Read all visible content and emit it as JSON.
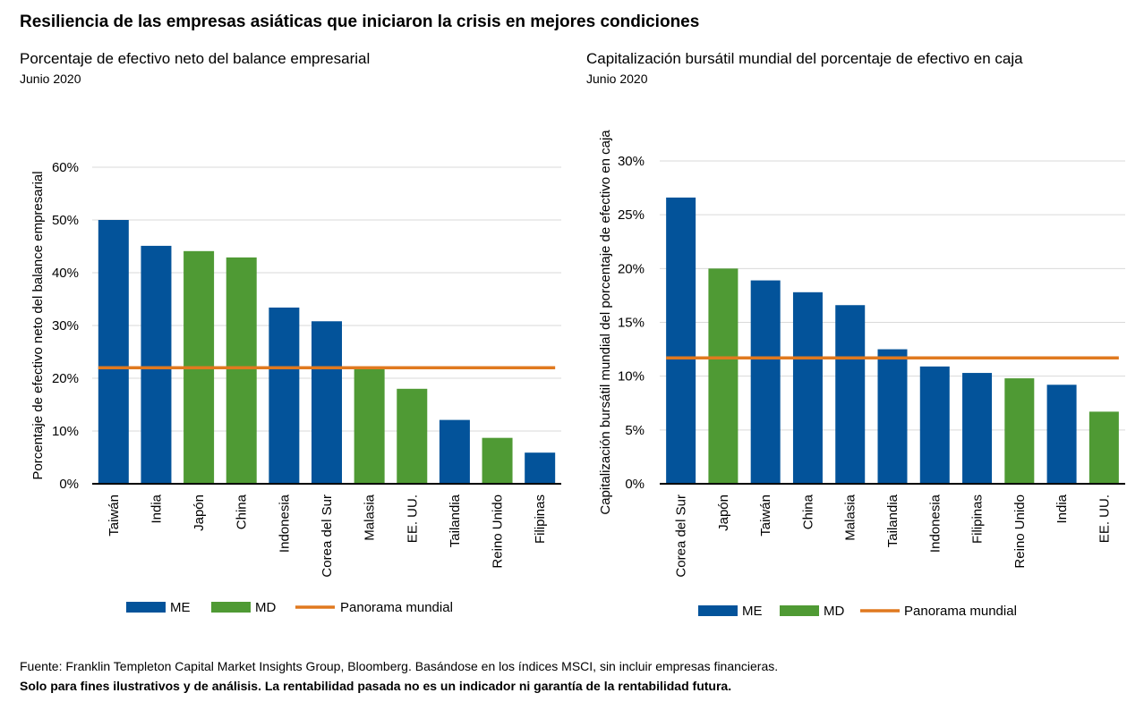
{
  "title": "Resiliencia de las empresas asiáticas que iniciaron la crisis en mejores condiciones",
  "colors": {
    "ME": "#03539a",
    "MD": "#4f9a34",
    "line": "#e0791f",
    "grid": "#d9d9d9",
    "axis": "#000000"
  },
  "footer": {
    "source": "Fuente: Franklin Templeton Capital Market Insights Group, Bloomberg. Basándose en los índices MSCI, sin incluir empresas financieras.",
    "disclaimer": "Solo para fines ilustrativos y de análisis. La rentabilidad pasada no es un indicador ni garantía de la rentabilidad futura."
  },
  "chart_data": [
    {
      "type": "bar",
      "title": "Porcentaje de efectivo neto del balance empresarial",
      "subtitle": "Junio 2020",
      "ylabel": "Porcentaje de efectivo neto del balance empresarial",
      "ylim": [
        0,
        60
      ],
      "yticks": [
        0,
        10,
        20,
        30,
        40,
        50,
        60
      ],
      "ytick_labels": [
        "0%",
        "10%",
        "20%",
        "30%",
        "40%",
        "50%",
        "60%"
      ],
      "categories": [
        "Taiwán",
        "India",
        "Japón",
        "China",
        "Indonesia",
        "Corea del Sur",
        "Malasia",
        "EE. UU.",
        "Tailandia",
        "Reino Unido",
        "Filipinas"
      ],
      "values": [
        50.0,
        45.1,
        44.1,
        42.9,
        33.4,
        30.8,
        22.0,
        18.0,
        12.1,
        8.7,
        5.9
      ],
      "groups": [
        "ME",
        "ME",
        "MD",
        "MD",
        "ME",
        "ME",
        "MD",
        "MD",
        "ME",
        "MD",
        "ME"
      ],
      "reference_line": {
        "name": "Panorama mundial",
        "value": 22.0
      },
      "legend": [
        {
          "key": "ME",
          "label": "ME"
        },
        {
          "key": "MD",
          "label": "MD"
        },
        {
          "key": "line",
          "label": "Panorama mundial"
        }
      ],
      "grid": true,
      "legend_position": "bottom"
    },
    {
      "type": "bar",
      "title": "Capitalización bursátil mundial del porcentaje de efectivo en caja",
      "subtitle": "Junio 2020",
      "ylabel": "Capitalización bursátil mundial del porcentaje de efectivo en caja",
      "ylim": [
        0,
        30
      ],
      "yticks": [
        0,
        5,
        10,
        15,
        20,
        25,
        30
      ],
      "ytick_labels": [
        "0%",
        "5%",
        "10%",
        "15%",
        "20%",
        "25%",
        "30%"
      ],
      "categories": [
        "Corea del Sur",
        "Japón",
        "Taiwán",
        "China",
        "Malasia",
        "Tailandia",
        "Indonesia",
        "Filipinas",
        "Reino Unido",
        "India",
        "EE. UU."
      ],
      "values": [
        26.6,
        20.0,
        18.9,
        17.8,
        16.6,
        12.5,
        10.9,
        10.3,
        9.8,
        9.2,
        6.7
      ],
      "groups": [
        "ME",
        "MD",
        "ME",
        "ME",
        "ME",
        "ME",
        "ME",
        "ME",
        "MD",
        "ME",
        "MD"
      ],
      "reference_line": {
        "name": "Panorama mundial",
        "value": 11.7
      },
      "legend": [
        {
          "key": "ME",
          "label": "ME"
        },
        {
          "key": "MD",
          "label": "MD"
        },
        {
          "key": "line",
          "label": "Panorama mundial"
        }
      ],
      "grid": true,
      "legend_position": "bottom"
    }
  ]
}
